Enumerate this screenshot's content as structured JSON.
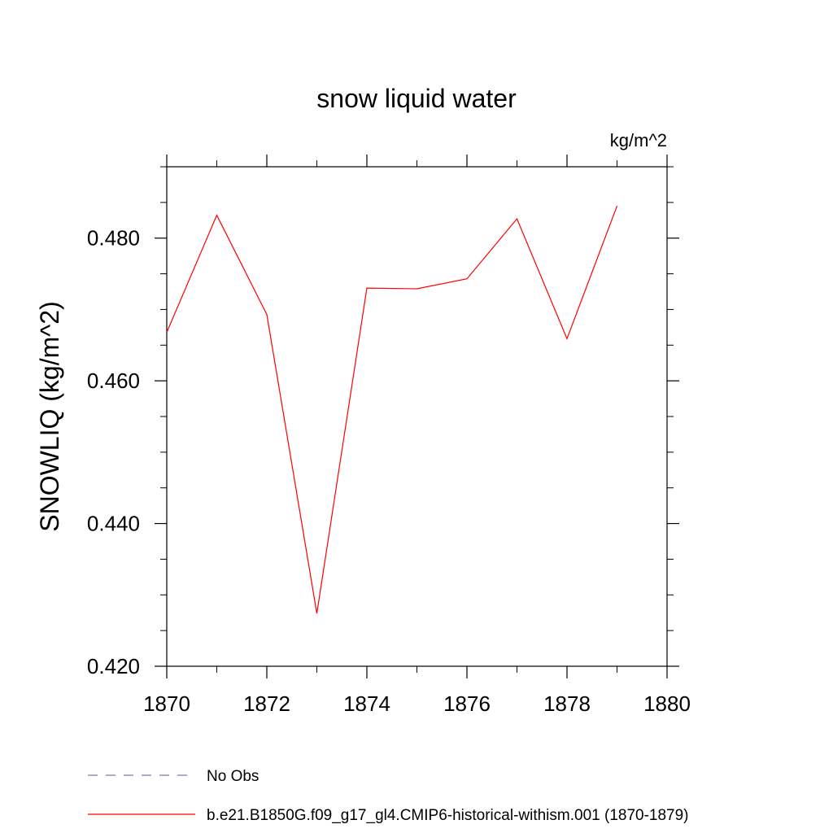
{
  "chart_data": {
    "type": "line",
    "title": "snow liquid water",
    "units_label": "kg/m^2",
    "ylabel": "SNOWLIQ  (kg/m^2)",
    "xlabel": "",
    "xlim": [
      1870,
      1880
    ],
    "ylim": [
      0.42,
      0.49
    ],
    "x_ticks": [
      {
        "value": 1870,
        "label": "1870"
      },
      {
        "value": 1872,
        "label": "1872"
      },
      {
        "value": 1874,
        "label": "1874"
      },
      {
        "value": 1876,
        "label": "1876"
      },
      {
        "value": 1878,
        "label": "1878"
      },
      {
        "value": 1880,
        "label": "1880"
      }
    ],
    "y_ticks": [
      {
        "value": 0.42,
        "label": "0.420"
      },
      {
        "value": 0.44,
        "label": "0.440"
      },
      {
        "value": 0.46,
        "label": "0.460"
      },
      {
        "value": 0.48,
        "label": "0.480"
      }
    ],
    "x_minor_step": 1,
    "y_minor_step": 0.005,
    "grid": false,
    "legend_position": "bottom-left",
    "series": [
      {
        "name": "No Obs",
        "color": "#7b78b8",
        "dash": true,
        "x": [],
        "y": []
      },
      {
        "name": "b.e21.B1850G.f09_g17_gl4.CMIP6-historical-withism.001 (1870-1879)",
        "color": "#ff0000",
        "dash": false,
        "x": [
          1870,
          1871,
          1872,
          1873,
          1874,
          1875,
          1876,
          1877,
          1878,
          1879
        ],
        "y": [
          0.4668,
          0.4832,
          0.4693,
          0.4274,
          0.473,
          0.4729,
          0.4743,
          0.4827,
          0.4659,
          0.4845
        ]
      }
    ]
  }
}
